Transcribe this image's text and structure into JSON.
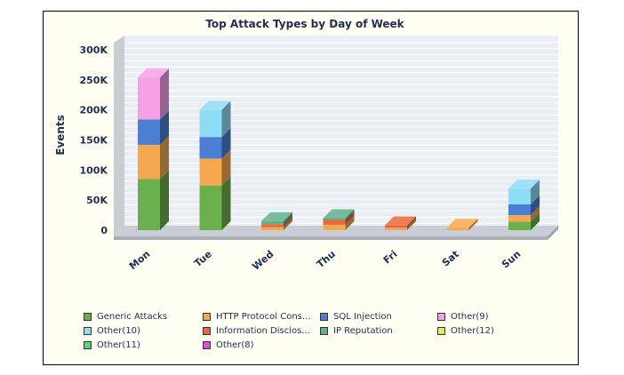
{
  "chart_data": {
    "type": "bar",
    "stacked": true,
    "style": "3d",
    "title": "Top Attack Types by Day of Week",
    "ylabel": "Events",
    "xlabel": "",
    "ylim": [
      0,
      300000
    ],
    "yticks": [
      0,
      50000,
      100000,
      150000,
      200000,
      250000,
      300000
    ],
    "ytick_labels": [
      "0",
      "50K",
      "100K",
      "150K",
      "200K",
      "250K",
      "300K"
    ],
    "grid": true,
    "legend_position": "bottom",
    "categories": [
      "Mon",
      "Tue",
      "Wed",
      "Thu",
      "Fri",
      "Sat",
      "Sun"
    ],
    "series": [
      {
        "name": "Generic Attacks",
        "color": "#6ab04c",
        "values": [
          85000,
          74000,
          0,
          0,
          0,
          0,
          14000
        ]
      },
      {
        "name": "HTTP Protocol Cons...",
        "color": "#f4a950",
        "values": [
          57000,
          45000,
          5000,
          9000,
          4000,
          4000,
          11000
        ]
      },
      {
        "name": "SQL Injection",
        "color": "#4a7fd4",
        "values": [
          42000,
          36000,
          0,
          0,
          0,
          0,
          18000
        ]
      },
      {
        "name": "Other(9)",
        "color": "#f7a0e8",
        "values": [
          70000,
          0,
          0,
          0,
          0,
          0,
          0
        ]
      },
      {
        "name": "Other(10)",
        "color": "#8fdcf5",
        "values": [
          0,
          45000,
          0,
          0,
          0,
          0,
          26000
        ]
      },
      {
        "name": "Information Disclos...",
        "color": "#e86a3a",
        "values": [
          0,
          0,
          5000,
          8000,
          4000,
          0,
          0
        ]
      },
      {
        "name": "IP Reputation",
        "color": "#5fb08a",
        "values": [
          0,
          0,
          5000,
          3000,
          0,
          0,
          0
        ]
      },
      {
        "name": "Other(12)",
        "color": "#e9e84a",
        "values": [
          0,
          0,
          0,
          0,
          0,
          0,
          0
        ]
      },
      {
        "name": "Other(11)",
        "color": "#4ddc6a",
        "values": [
          0,
          0,
          0,
          0,
          0,
          0,
          0
        ]
      },
      {
        "name": "Other(8)",
        "color": "#e04ae0",
        "values": [
          0,
          0,
          0,
          0,
          0,
          0,
          0
        ]
      }
    ]
  }
}
